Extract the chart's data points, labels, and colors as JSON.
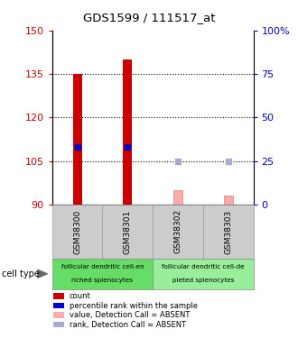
{
  "title": "GDS1599 / 111517_at",
  "samples": [
    "GSM38300",
    "GSM38301",
    "GSM38302",
    "GSM38303"
  ],
  "ylim_left": [
    90,
    150
  ],
  "ylim_right": [
    0,
    100
  ],
  "yticks_left": [
    90,
    105,
    120,
    135,
    150
  ],
  "yticks_right": [
    0,
    25,
    50,
    75,
    100
  ],
  "bar_values": [
    135.0,
    140.0,
    null,
    null
  ],
  "bar_absent_values": [
    null,
    null,
    95.0,
    93.0
  ],
  "blue_dot_values": [
    110.0,
    110.0,
    null,
    null
  ],
  "blue_absent_dot_values": [
    null,
    null,
    105.0,
    105.0
  ],
  "bar_color": "#cc0000",
  "bar_absent_color": "#ffaaaa",
  "blue_dot_color": "#0000cc",
  "blue_dot_absent_color": "#aaaacc",
  "cell_type_groups": [
    {
      "label1": "follicular dendritic cell-en",
      "label2": "riched splenocytes",
      "cols": [
        0,
        1
      ],
      "color": "#66dd66"
    },
    {
      "label1": "follicular dendritic cell-de",
      "label2": "pleted splenocytes",
      "cols": [
        2,
        3
      ],
      "color": "#99ee99"
    }
  ],
  "left_axis_color": "#cc0000",
  "right_axis_color": "#0000cc",
  "background_color": "#ffffff",
  "grid_color": "#000000",
  "sample_box_color": "#cccccc",
  "legend_items": [
    {
      "color": "#cc0000",
      "label": "count"
    },
    {
      "color": "#0000cc",
      "label": "percentile rank within the sample"
    },
    {
      "color": "#ffaaaa",
      "label": "value, Detection Call = ABSENT"
    },
    {
      "color": "#aaaacc",
      "label": "rank, Detection Call = ABSENT"
    }
  ],
  "bar_width": 0.18
}
